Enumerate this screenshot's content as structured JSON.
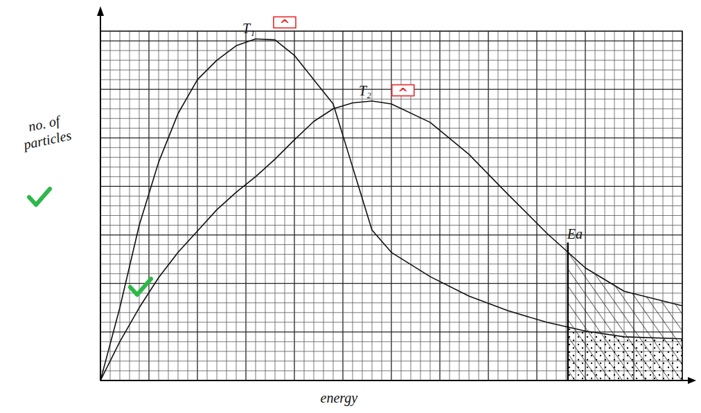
{
  "chart_data": {
    "type": "line",
    "x_label": "energy",
    "y_label": "no. of particles",
    "x": [
      0,
      2,
      4,
      6,
      8,
      10,
      12,
      14,
      16,
      18,
      20,
      22,
      24,
      26,
      28,
      30,
      34,
      38,
      42,
      46,
      50,
      54,
      60
    ],
    "series": [
      {
        "name": "T₁",
        "color": "#111111",
        "values": [
          0,
          7.5,
          16,
          22.5,
          27.5,
          31,
          33,
          34.5,
          35.2,
          35.1,
          33.5,
          31,
          28.5,
          22,
          15.5,
          13.2,
          10.7,
          8.7,
          7.2,
          6,
          5.1,
          4.5,
          4.3
        ]
      },
      {
        "name": "T₂",
        "color": "#111111",
        "values": [
          0,
          4,
          7.5,
          10.6,
          13.2,
          15.4,
          17.6,
          19.4,
          21,
          22.8,
          24.8,
          26.7,
          28,
          28.6,
          28.8,
          28.5,
          26.6,
          23.3,
          19.2,
          15.2,
          11.6,
          9.2,
          7.7
        ]
      }
    ],
    "annotations": [
      {
        "text": "Ea",
        "x": 48.2
      },
      {
        "text": "^",
        "x": 19,
        "y": 36.9,
        "color": "#e8282b"
      },
      {
        "text": "^",
        "x": 31.2,
        "y": 29.9,
        "color": "#e8282b"
      }
    ],
    "xlim": [
      0,
      60
    ],
    "ylim": [
      0,
      36
    ],
    "xticks": [
      0,
      1,
      2,
      3,
      4,
      5,
      6,
      7,
      8,
      9,
      10,
      11,
      12,
      13,
      14,
      15,
      16,
      17,
      18,
      19,
      20,
      21,
      22,
      23,
      24,
      25,
      26,
      27,
      28,
      29,
      30,
      31,
      32,
      33,
      34,
      35,
      36,
      37,
      38,
      39,
      40,
      41,
      42,
      43,
      44,
      45,
      46,
      47,
      48,
      49,
      50,
      51,
      52,
      53,
      54,
      55,
      56,
      57,
      58,
      59,
      60
    ],
    "yticks": [
      0,
      1,
      2,
      3,
      4,
      5,
      6,
      7,
      8,
      9,
      10,
      11,
      12,
      13,
      14,
      15,
      16,
      17,
      18,
      19,
      20,
      21,
      22,
      23,
      24,
      25,
      26,
      27,
      28,
      29,
      30,
      31,
      32,
      33,
      34,
      35,
      36
    ],
    "grid": true,
    "tick_labels": false
  }
}
